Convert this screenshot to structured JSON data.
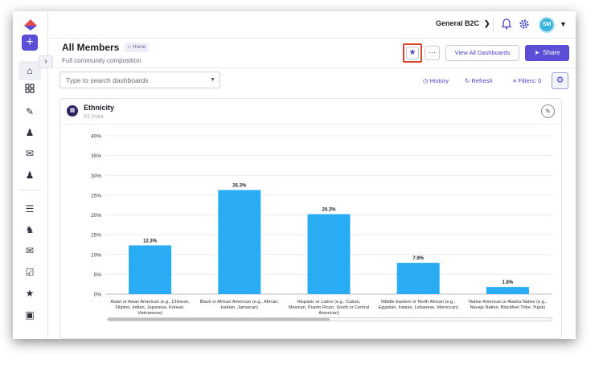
{
  "topbar": {
    "workspace": "General B2C",
    "avatar_initials": "SM"
  },
  "header": {
    "title": "All Members",
    "breadcrumb": "Home",
    "subtitle": "Full community composition",
    "view_all_label": "View All Dashboards",
    "share_label": "Share",
    "more_label": "···"
  },
  "toolbar": {
    "search_placeholder": "Type to search dashboards",
    "history_label": "History",
    "refresh_label": "Refresh",
    "filters_label": "Filters: 0"
  },
  "colors": {
    "accent": "#5b4ed6",
    "bar": "#2aacf5",
    "highlight_border": "#d9452b"
  },
  "card": {
    "title": "Ethnicity",
    "subtitle": "P2 Point"
  },
  "chart_data": {
    "type": "bar",
    "title": "Ethnicity",
    "categories": [
      [
        "Asian or Asian American (e.g., Chinese,",
        "Filipino, Indian, Japanese, Korean,",
        "Vietnamese)"
      ],
      [
        "Black or African American (e.g., African,",
        "Haitian, Jamaican)"
      ],
      [
        "Hispanic or Latino (e.g., Cuban,",
        "Mexican, Puerto Rican, South or Central",
        "American)"
      ],
      [
        "Middle Eastern or North African (e.g.,",
        "Egyptian, Iranian, Lebanese, Moroccan)"
      ],
      [
        "Native American or Alaska Native (e.g.,",
        "Navajo Nation, Blackfeet Tribe, Yupik)"
      ]
    ],
    "values": [
      12.3,
      26.3,
      20.2,
      7.9,
      1.8
    ],
    "value_labels": [
      "12.3%",
      "26.3%",
      "20.2%",
      "7.9%",
      "1.8%"
    ],
    "ylim": [
      0,
      40
    ],
    "yticks": [
      "0%",
      "5%",
      "10%",
      "15%",
      "20%",
      "25%",
      "30%",
      "35%",
      "40%"
    ],
    "grid": true,
    "legend": "none"
  }
}
